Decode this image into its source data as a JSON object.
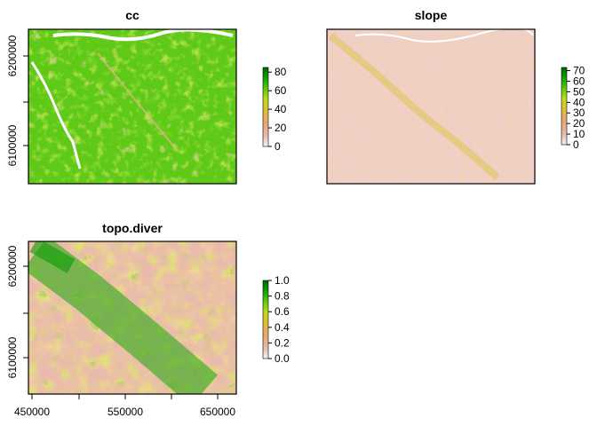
{
  "panels": [
    {
      "id": "cc",
      "title": "cc",
      "legend_ticks": [
        "80",
        "60",
        "40",
        "20",
        "0"
      ],
      "legend_range": [
        0,
        85
      ],
      "legend_tick_values": [
        80,
        60,
        40,
        20,
        0
      ],
      "y_ticks": [
        "6200000",
        "6100000"
      ],
      "x_ticks": []
    },
    {
      "id": "slope",
      "title": "slope",
      "legend_ticks": [
        "70",
        "60",
        "50",
        "40",
        "30",
        "20",
        "10",
        "0"
      ],
      "legend_range": [
        0,
        73
      ],
      "legend_tick_values": [
        70,
        60,
        50,
        40,
        30,
        20,
        10,
        0
      ],
      "y_ticks": [],
      "x_ticks": []
    },
    {
      "id": "topo",
      "title": "topo.diver",
      "legend_ticks": [
        "1.0",
        "0.8",
        "0.6",
        "0.4",
        "0.2",
        "0.0"
      ],
      "legend_range": [
        0,
        1
      ],
      "legend_tick_values": [
        1.0,
        0.8,
        0.6,
        0.4,
        0.2,
        0.0
      ],
      "y_ticks": [
        "6200000",
        "6100000"
      ],
      "x_ticks": [
        "450000",
        "550000",
        "650000"
      ]
    }
  ],
  "colors": {
    "ramp": [
      "#f2f2f2",
      "#e8b8ae",
      "#e6a674",
      "#dcc03c",
      "#b7dc1c",
      "#55c512",
      "#0a9a06",
      "#006400"
    ],
    "water": "#ffffff",
    "frame": "#000000"
  }
}
